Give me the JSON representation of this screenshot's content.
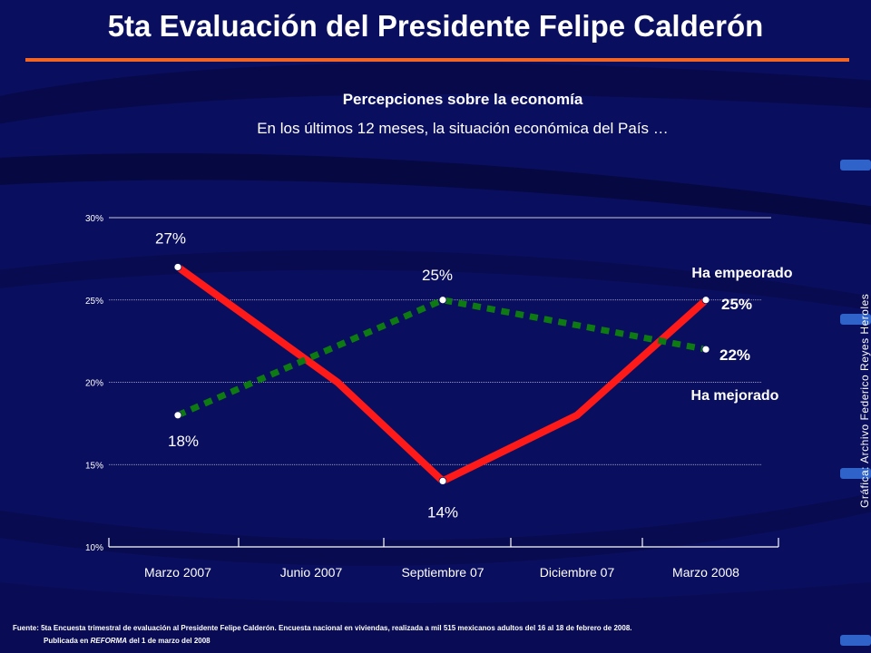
{
  "header": {
    "title": "5ta Evaluación del Presidente Felipe Calderón",
    "subtitle": "Percepciones sobre la economía",
    "question": "En los últimos 12 meses, la situación económica del País …"
  },
  "colors": {
    "background": "#0a0e5e",
    "accent_rule": "#f26522",
    "worse_series": "#ff1a1a",
    "better_series": "#0e7a12"
  },
  "chart_data": {
    "type": "line",
    "categories": [
      "Marzo 2007",
      "Junio 2007",
      "Septiembre 07",
      "Diciembre 07",
      "Marzo 2008"
    ],
    "x_positions": [
      0,
      1,
      2,
      3,
      4
    ],
    "ylim": [
      10,
      30
    ],
    "yticks": [
      10,
      15,
      20,
      25,
      30
    ],
    "ytick_labels": [
      "10%",
      "15%",
      "20%",
      "25%",
      "30%"
    ],
    "grid": true,
    "series": [
      {
        "name": "Ha empeorado",
        "style": "solid",
        "color": "#ff1a1a",
        "points": [
          {
            "x": 0,
            "y": 27,
            "label": "27%",
            "marker": true
          },
          {
            "x": 1.2,
            "y": 20,
            "label": null,
            "marker": false
          },
          {
            "x": 2,
            "y": 14,
            "label": "14%",
            "marker": true
          },
          {
            "x": 3,
            "y": 18,
            "label": null,
            "marker": false
          },
          {
            "x": 4,
            "y": 25,
            "label": "25%",
            "marker": true
          }
        ]
      },
      {
        "name": "Ha mejorado",
        "style": "dotted",
        "color": "#0e7a12",
        "points": [
          {
            "x": 0,
            "y": 18,
            "label": "18%",
            "marker": true
          },
          {
            "x": 2,
            "y": 25,
            "label": "25%",
            "marker": true
          },
          {
            "x": 4,
            "y": 22,
            "label": "22%",
            "marker": true
          }
        ]
      }
    ]
  },
  "credit": "Gráfica: Archivo Federico Reyes Heroles",
  "footer": {
    "source": "Fuente: 5ta Encuesta trimestral de evaluación al Presidente Felipe Calderón. Encuesta nacional en viviendas, realizada a mil 515 mexicanos adultos del 16 al 18 de febrero de 2008.",
    "published_prefix": "Publicada en ",
    "published_outlet": "REFORMA",
    "published_suffix": " del 1 de marzo del 2008"
  }
}
